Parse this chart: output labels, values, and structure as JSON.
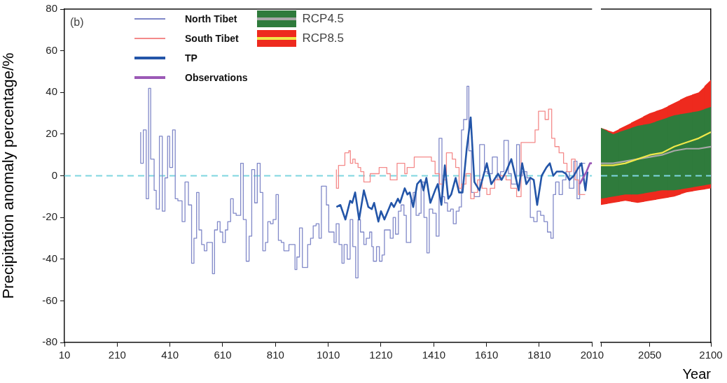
{
  "chart_data": [
    {
      "type": "step",
      "ylabel": "Precipitation anomaly percentage/%",
      "annotations": [
        "(b)"
      ],
      "xlim": [
        10,
        2010
      ],
      "xticks": [
        10,
        210,
        410,
        610,
        810,
        1010,
        1210,
        1410,
        1610,
        1810,
        2010
      ],
      "ylim": [
        -80,
        80
      ],
      "yticks": [
        -80,
        -60,
        -40,
        -20,
        0,
        20,
        40,
        60,
        80
      ],
      "grid": false,
      "legend": "top left",
      "ref_lines": [
        {
          "axis": "y",
          "value": 0,
          "color": "#7fd6e0",
          "line_style": "dashed"
        }
      ],
      "series": [
        {
          "name": "North Tibet",
          "type": "step",
          "color": "#8088c8",
          "x": [
            299,
            309,
            320,
            329,
            337,
            350,
            358,
            370,
            381,
            391,
            401,
            409,
            420,
            430,
            440,
            456,
            467,
            480,
            492,
            501,
            511,
            520,
            530,
            540,
            550,
            571,
            579,
            590,
            600,
            610,
            620,
            629,
            640,
            650,
            661,
            678,
            688,
            699,
            710,
            720,
            731,
            741,
            752,
            762,
            772,
            781,
            791,
            801,
            812,
            821,
            832,
            842,
            861,
            884,
            891,
            901,
            912,
            932,
            943,
            953,
            964,
            975,
            984,
            1003,
            1012,
            1032,
            1040,
            1051,
            1062,
            1070,
            1082,
            1093,
            1103,
            1114,
            1123,
            1132,
            1145,
            1154,
            1167,
            1175,
            1181,
            1193,
            1204,
            1214,
            1223,
            1245,
            1256,
            1265,
            1276,
            1286,
            1297,
            1306,
            1323,
            1332,
            1343,
            1354,
            1362,
            1373,
            1384,
            1393,
            1406,
            1419,
            1430,
            1441,
            1451,
            1462,
            1474,
            1484,
            1495,
            1506,
            1515,
            1523,
            1536,
            1543,
            1553,
            1564,
            1584,
            1602,
            1613,
            1632,
            1651,
            1663,
            1676,
            1693,
            1704,
            1724,
            1735,
            1746,
            1763,
            1776,
            1789,
            1802,
            1815,
            1828,
            1841,
            1854,
            1863,
            1872,
            1885,
            1898,
            1911,
            1924,
            1941,
            1953,
            1963,
            1976,
            1984
          ],
          "values": [
            21,
            6,
            22,
            -11,
            42,
            8,
            -7,
            -16,
            19,
            -17,
            -1,
            19,
            4,
            22,
            -11,
            -12,
            -22,
            -3,
            -14,
            -42,
            -30,
            -8,
            -26,
            -33,
            -36,
            -32,
            -47,
            -26,
            -22,
            -27,
            -32,
            -26,
            -22,
            -11,
            -18,
            -19,
            6,
            -21,
            -41,
            -29,
            3,
            -13,
            6,
            -8,
            -36,
            -32,
            -22,
            -23,
            -21,
            -9,
            -31,
            -32,
            -36,
            -33,
            -45,
            -39,
            -25,
            -44,
            -33,
            -30,
            -24,
            -23,
            -30,
            -5,
            -14,
            -27,
            -32,
            -23,
            -33,
            -42,
            -33,
            -40,
            -21,
            -34,
            -49,
            -21,
            -27,
            -33,
            -30,
            -27,
            -34,
            -41,
            -34,
            -41,
            -38,
            -26,
            -30,
            -20,
            -28,
            -17,
            -14,
            -19,
            -32,
            -12,
            -8,
            -19,
            -18,
            -3,
            -20,
            -37,
            -16,
            -18,
            -29,
            18,
            -10,
            -13,
            -17,
            -16,
            -23,
            -17,
            -15,
            22,
            27,
            43,
            12,
            -8,
            -10,
            15,
            2,
            1,
            9,
            -2,
            2,
            17,
            1,
            -4,
            15,
            0,
            2,
            -1,
            -20,
            -22,
            -17,
            -19,
            -22,
            -27,
            -30,
            -9,
            -3,
            -9,
            -2,
            2,
            -6,
            7,
            -11,
            6,
            6
          ]
        },
        {
          "name": "South Tibet",
          "type": "step",
          "color": "#f48a8a",
          "x": [
            1041,
            1049,
            1073,
            1088,
            1094,
            1103,
            1112,
            1123,
            1133,
            1145,
            1169,
            1203,
            1232,
            1245,
            1271,
            1300,
            1309,
            1336,
            1401,
            1415,
            1432,
            1445,
            1458,
            1480,
            1493,
            1506,
            1515,
            1532,
            1550,
            1563,
            1576,
            1593,
            1611,
            1624,
            1641,
            1658,
            1684,
            1702,
            1724,
            1741,
            1794,
            1807,
            1832,
            1845,
            1857,
            1869,
            1885,
            1902,
            1915,
            1932,
            1946,
            1959,
            1976,
            1984
          ],
          "values": [
            3,
            -6,
            5,
            11,
            12,
            6,
            8,
            6,
            4,
            2,
            -3,
            1,
            4,
            1,
            -2,
            6,
            1,
            4,
            9,
            7,
            1,
            -4,
            -2,
            11,
            8,
            4,
            -6,
            -4,
            1,
            -11,
            -8,
            -2,
            -6,
            -9,
            -6,
            -2,
            0,
            -2,
            -6,
            -10,
            16,
            22,
            31,
            27,
            32,
            18,
            14,
            11,
            6,
            2,
            8,
            -2,
            -9,
            -9
          ]
        },
        {
          "name": "TP",
          "type": "line",
          "color": "#2355a8",
          "x": [
            1041,
            1056,
            1075,
            1093,
            1101,
            1112,
            1127,
            1145,
            1162,
            1175,
            1184,
            1200,
            1210,
            1223,
            1249,
            1259,
            1274,
            1282,
            1300,
            1310,
            1319,
            1332,
            1347,
            1361,
            1371,
            1382,
            1397,
            1415,
            1425,
            1439,
            1452,
            1465,
            1476,
            1493,
            1506,
            1519,
            1535,
            1550,
            1564,
            1583,
            1611,
            1628,
            1654,
            1667,
            1684,
            1704,
            1719,
            1732,
            1745,
            1761,
            1776,
            1789,
            1802,
            1819,
            1837,
            1850,
            1863,
            1876,
            1898,
            1911,
            1924,
            1941,
            1954,
            1970,
            1985,
            1993
          ],
          "values": [
            -15,
            -14,
            -21,
            -12,
            -13,
            -8,
            -21,
            -7,
            -15,
            -16,
            -13,
            -22,
            -17,
            -21,
            -13,
            -15,
            -11,
            -13,
            -6,
            -9,
            -8,
            -15,
            -4,
            -2,
            -7,
            -1,
            -13,
            -7,
            -4,
            -14,
            5,
            -11,
            -9,
            -1,
            -8,
            -8,
            13,
            28,
            -3,
            -7,
            6,
            -4,
            1,
            -2,
            2,
            8,
            0,
            -7,
            6,
            -4,
            -1,
            -2,
            -14,
            0,
            4,
            6,
            0,
            2,
            2,
            1,
            -2,
            0,
            3,
            6,
            -7,
            2
          ]
        },
        {
          "name": "Observations",
          "type": "line",
          "color": "#9b59b6",
          "x": [
            1963,
            1976,
            1989,
            2002,
            2010
          ],
          "values": [
            -4,
            -1,
            2,
            6,
            6
          ]
        }
      ]
    },
    {
      "type": "line",
      "xlabel": "Year",
      "xlim": [
        2010,
        2100
      ],
      "xticks": [
        {
          "value": 2010,
          "label": null
        },
        2050,
        2100
      ],
      "ylim": [
        -80,
        80
      ],
      "yticks": [
        -80,
        -60,
        -40,
        -20,
        0,
        20,
        40,
        60,
        80
      ],
      "tick_labels": "x",
      "grid": false,
      "legend": "top left",
      "ref_lines": [
        {
          "axis": "y",
          "value": 0,
          "color": "#7fd6e0",
          "line_style": "dashed"
        }
      ],
      "series": [
        {
          "name": "RCP4.5",
          "color": "#a8a8a8",
          "type": "line",
          "colors": [
            "#2f7b3c",
            "#2f7b3c",
            "#2f7b3c",
            "#2f7b3c",
            "#2f7b3c",
            "#2f7b3c",
            "#2f7b3c",
            "#2f7b3c",
            "#2f7b3c",
            "#2f7b3c"
          ],
          "x": [
            2010,
            2020,
            2030,
            2040,
            2050,
            2060,
            2070,
            2080,
            2090,
            2100
          ],
          "values": [
            6,
            6,
            7,
            8,
            9,
            10,
            12,
            13,
            13,
            14
          ],
          "lower": [
            -11,
            -10,
            -9,
            -9,
            -8,
            -7,
            -7,
            -6,
            -5,
            -4
          ],
          "upper": [
            23,
            20,
            22,
            24,
            25,
            27,
            29,
            30,
            31,
            33
          ]
        },
        {
          "name": "RCP8.5",
          "color": "#f0e84a",
          "type": "line",
          "colors": [
            "#ee2a1e",
            "#ee2a1e",
            "#ee2a1e",
            "#ee2a1e",
            "#ee2a1e",
            "#ee2a1e",
            "#ee2a1e",
            "#ee2a1e",
            "#ee2a1e",
            "#ee2a1e"
          ],
          "x": [
            2010,
            2020,
            2030,
            2040,
            2050,
            2060,
            2070,
            2080,
            2090,
            2100
          ],
          "values": [
            5,
            5,
            6,
            8,
            10,
            11,
            14,
            16,
            18,
            21
          ],
          "lower": [
            -14,
            -13,
            -12,
            -13,
            -12,
            -11,
            -10,
            -8,
            -7,
            -6
          ],
          "upper": [
            23,
            21,
            24,
            27,
            30,
            32,
            35,
            38,
            40,
            46
          ]
        }
      ]
    }
  ]
}
